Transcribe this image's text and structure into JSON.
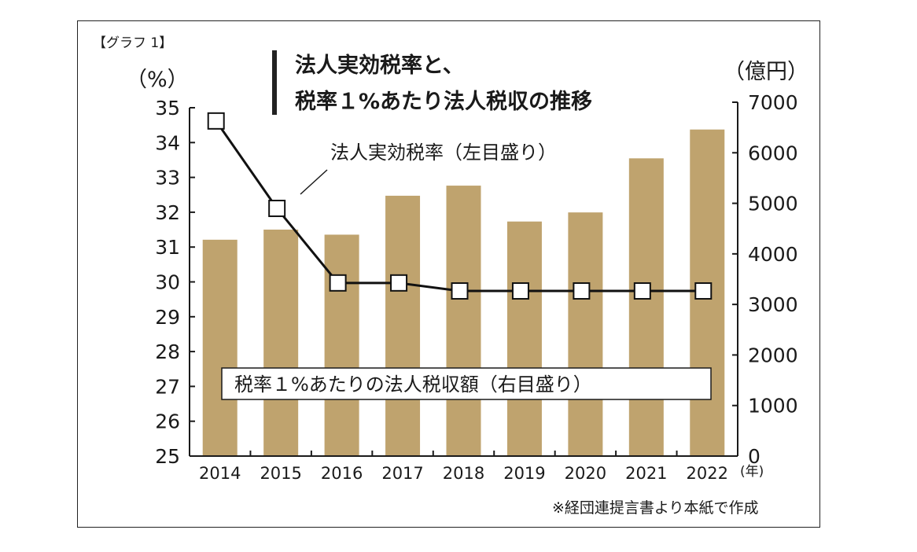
{
  "figure_label": "【グラフ 1】",
  "title_lines": [
    "法人実効税率と、",
    "税率１%あたり法人税収の推移"
  ],
  "left_unit": "（%）",
  "right_unit": "（億円）",
  "x_unit": "(年)",
  "line_label": "法人実効税率（左目盛り）",
  "bar_label": "税率１%あたりの法人税収額（右目盛り）",
  "source_note": "※経団連提言書より本紙で作成",
  "colors": {
    "bar": "#bfa36e",
    "line": "#111111",
    "marker_fill": "#ffffff"
  },
  "chart_data": {
    "type": "bar",
    "categories": [
      "2014",
      "2015",
      "2016",
      "2017",
      "2018",
      "2019",
      "2020",
      "2021",
      "2022"
    ],
    "series": [
      {
        "name": "税率１%あたりの法人税収額（右目盛り）",
        "type": "bar",
        "axis": "right",
        "values": [
          4280,
          4480,
          4380,
          5150,
          5350,
          4640,
          4820,
          5890,
          6460
        ]
      },
      {
        "name": "法人実効税率（左目盛り）",
        "type": "line",
        "axis": "left",
        "values": [
          34.62,
          32.11,
          29.97,
          29.97,
          29.74,
          29.74,
          29.74,
          29.74,
          29.74
        ]
      }
    ],
    "left_axis": {
      "ylim": [
        25,
        35
      ],
      "ticks": [
        "35",
        "34",
        "33",
        "32",
        "31",
        "30",
        "29",
        "28",
        "27",
        "26",
        "25"
      ]
    },
    "right_axis": {
      "ylim": [
        0,
        7000
      ],
      "ticks": [
        "7000",
        "6000",
        "5000",
        "4000",
        "3000",
        "2000",
        "1000",
        "0"
      ]
    },
    "grid": false
  }
}
